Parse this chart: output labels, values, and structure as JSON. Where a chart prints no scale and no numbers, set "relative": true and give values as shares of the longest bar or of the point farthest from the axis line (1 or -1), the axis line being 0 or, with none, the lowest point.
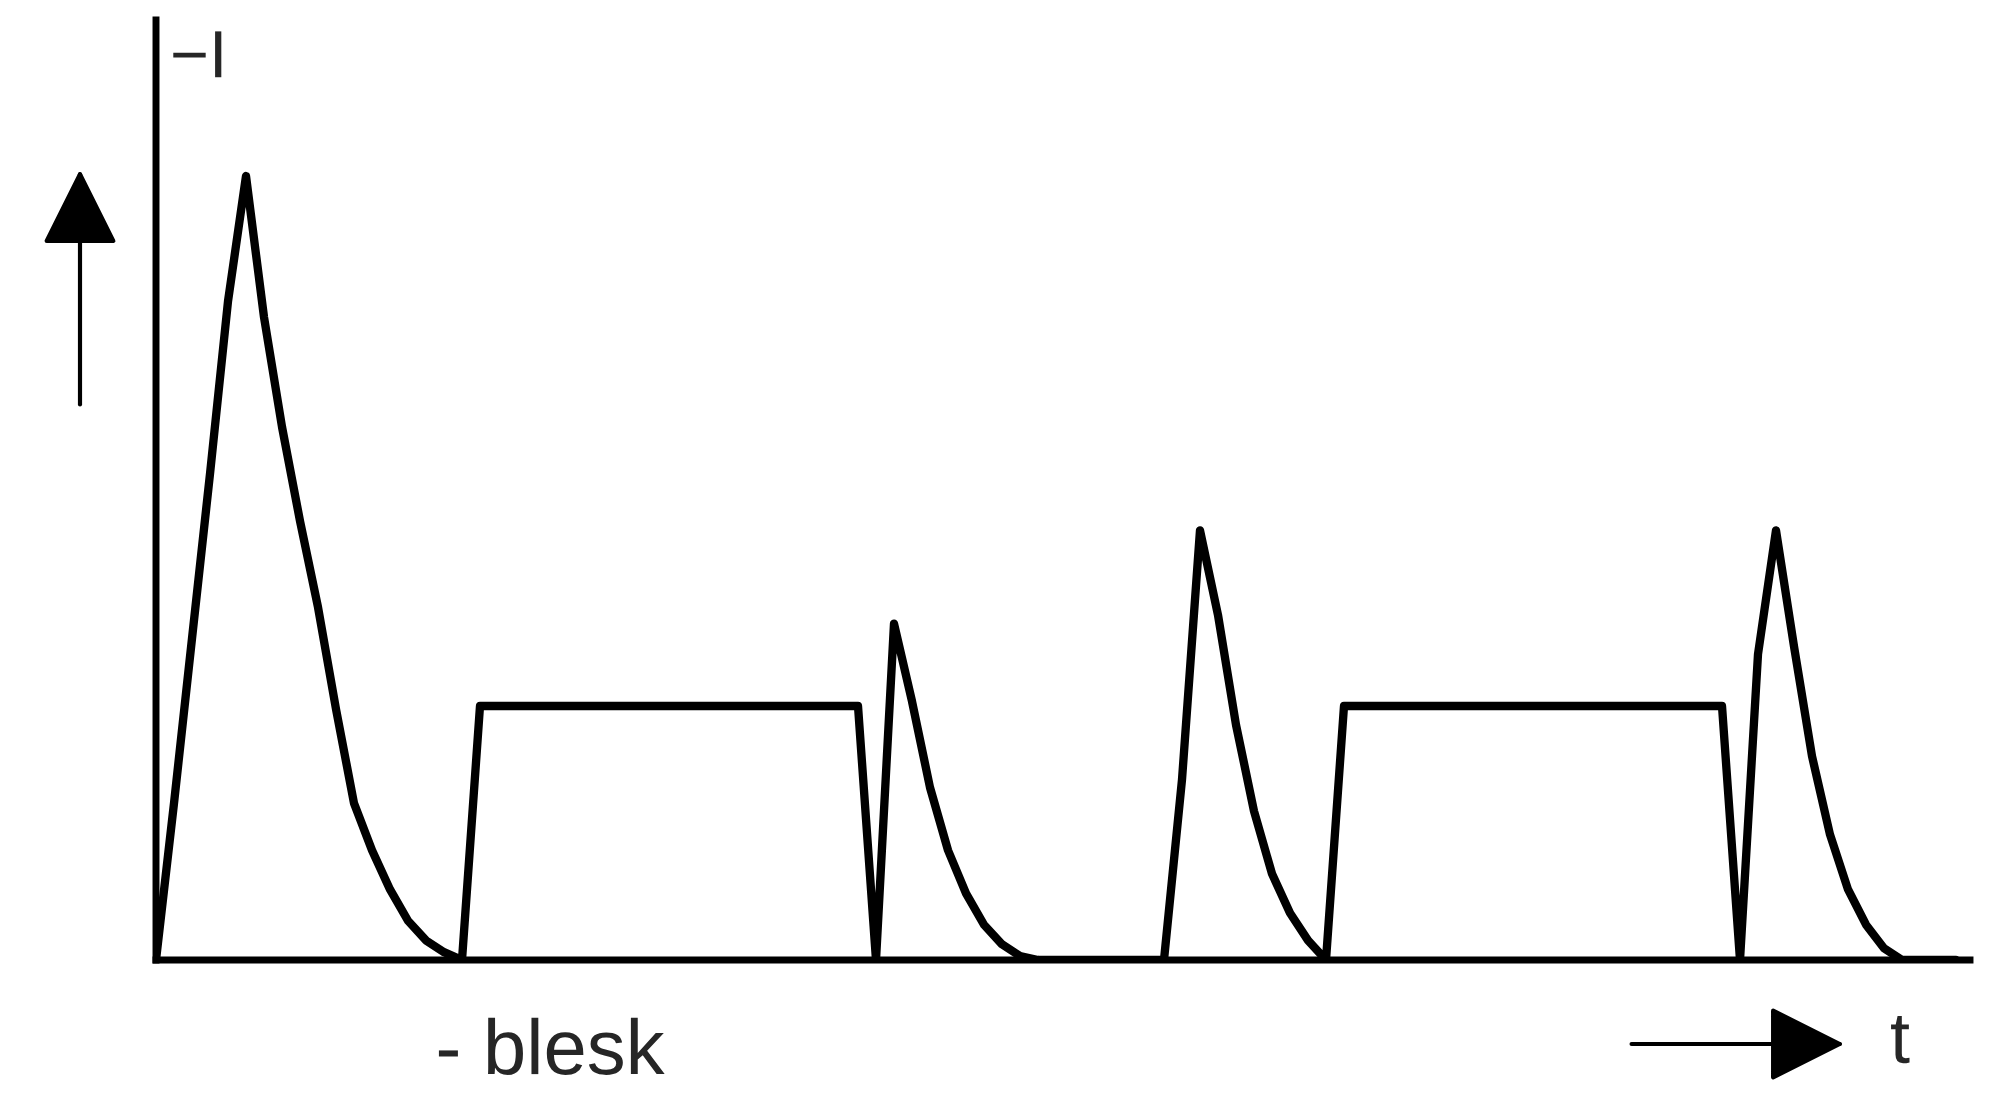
{
  "chart_data": {
    "type": "line",
    "relative": true,
    "ylabel": "−I",
    "xlabel": "t",
    "annotations": [
      "- blesk"
    ],
    "legend": false,
    "marker": "none",
    "line_style": "solid",
    "categories": [
      null,
      null,
      null,
      null,
      null,
      null,
      null,
      null,
      null,
      null,
      null,
      null,
      null,
      null,
      null,
      null,
      null,
      null,
      null,
      null,
      null,
      null,
      null,
      null,
      null,
      null,
      null,
      null,
      null,
      null,
      null,
      null,
      null,
      null,
      null,
      null,
      null,
      null,
      null,
      null,
      null,
      null,
      null,
      null,
      null,
      null,
      null,
      null,
      null,
      null,
      null,
      null,
      null,
      null,
      null,
      null,
      null,
      null,
      null,
      null,
      null,
      null,
      null,
      null,
      null,
      null,
      null,
      null,
      null,
      null,
      null,
      null,
      null,
      null,
      null,
      null,
      null,
      null,
      null,
      null,
      null,
      null,
      null,
      null,
      null,
      null,
      null,
      null,
      null,
      null,
      null,
      null,
      null,
      null,
      null,
      null,
      null,
      null,
      null,
      null,
      null
    ],
    "series": [
      {
        "color": "#000000",
        "values": [
          0,
          0.2,
          0.41,
          0.62,
          0.84,
          1.0,
          0.82,
          0.68,
          0.56,
          0.45,
          0.32,
          0.2,
          0.14,
          0.09,
          0.05,
          0.025,
          0.01,
          0,
          0.324,
          0.324,
          0.324,
          0.324,
          0.324,
          0.324,
          0.324,
          0.324,
          0.324,
          0.324,
          0.324,
          0.324,
          0.324,
          0.324,
          0.324,
          0.324,
          0.324,
          0.324,
          0.324,
          0.324,
          0.324,
          0.324,
          0,
          0.429,
          0.33,
          0.22,
          0.14,
          0.085,
          0.045,
          0.02,
          0.005,
          0,
          0,
          0,
          0,
          0,
          0,
          0,
          0,
          0.23,
          0.548,
          0.44,
          0.3,
          0.19,
          0.11,
          0.06,
          0.025,
          0,
          0.324,
          0.324,
          0.324,
          0.324,
          0.324,
          0.324,
          0.324,
          0.324,
          0.324,
          0.324,
          0.324,
          0.324,
          0.324,
          0.324,
          0.324,
          0.324,
          0.324,
          0.324,
          0.324,
          0.324,
          0.324,
          0.324,
          0,
          0.39,
          0.548,
          0.4,
          0.26,
          0.16,
          0.09,
          0.045,
          0.015,
          0,
          0,
          0,
          0
        ]
      }
    ]
  }
}
